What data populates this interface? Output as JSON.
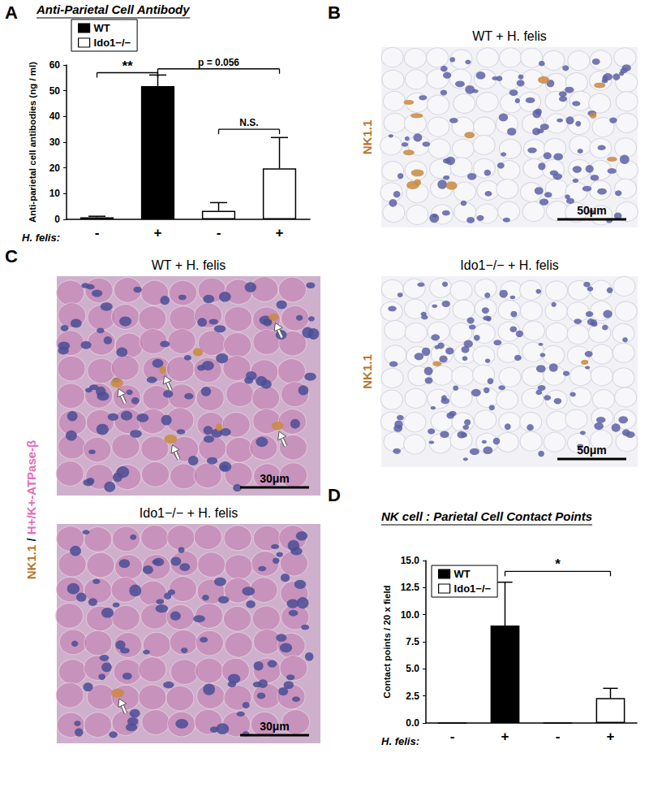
{
  "chart_data": [
    {
      "type": "bar",
      "panel": "A",
      "title": "Anti-Parietal Cell Antibody",
      "ylabel": "Anti-parietal cell antibodies (ng / ml)",
      "xlabel": "H. felis:",
      "categories": [
        "-",
        "+",
        "-",
        "+"
      ],
      "ylim": [
        0,
        60
      ],
      "yticks": [
        0,
        10,
        20,
        30,
        40,
        50,
        60
      ],
      "grid": false,
      "legend": "top-left",
      "series": [
        {
          "name": "WT",
          "color": "#000000",
          "values": [
            0.8,
            51.8,
            null,
            null
          ],
          "errors": [
            0.4,
            4.3,
            null,
            null
          ]
        },
        {
          "name": "Ido1−/−",
          "color": "#ffffff",
          "values": [
            null,
            null,
            3.3,
            19.8
          ],
          "errors": [
            null,
            null,
            3.2,
            12.0
          ]
        }
      ],
      "annotations": [
        {
          "text": "**",
          "between": [
            0,
            1
          ],
          "y": 57
        },
        {
          "text": "p = 0.056",
          "between": [
            1,
            3
          ],
          "y": 58.5
        },
        {
          "text": "N.S.",
          "between": [
            2,
            3
          ],
          "y": 35
        }
      ]
    },
    {
      "type": "bar",
      "panel": "D",
      "title": "NK cell : Parietal Cell Contact Points",
      "ylabel": "Contact points / 20 x field",
      "xlabel": "H. felis:",
      "categories": [
        "-",
        "+",
        "-",
        "+"
      ],
      "ylim": [
        0,
        15
      ],
      "yticks": [
        {
          "value": 0,
          "label": "0.0"
        },
        2.5,
        {
          "value": 5,
          "label": "5.0"
        },
        7.5,
        {
          "value": 10,
          "label": "10.0"
        },
        12.5,
        {
          "value": 15,
          "label": "15.0"
        }
      ],
      "grid": false,
      "legend": "top-left",
      "series": [
        {
          "name": "WT",
          "color": "#000000",
          "values": [
            0,
            9.0,
            null,
            null
          ],
          "errors": [
            null,
            4.0,
            null,
            null
          ]
        },
        {
          "name": "Ido1−/−",
          "color": "#ffffff",
          "values": [
            null,
            null,
            0,
            2.3
          ],
          "errors": [
            null,
            null,
            null,
            0.9
          ]
        }
      ],
      "annotations": [
        {
          "text": "*",
          "between": [
            1,
            3
          ],
          "y": 14
        }
      ]
    }
  ],
  "images": [
    {
      "panel": "B",
      "label": [
        {
          "text": "NK1.1",
          "color": "#b5762c"
        }
      ],
      "items": [
        {
          "title": "WT + H. felis",
          "scale_bar": "50μm",
          "arrows": 0
        },
        {
          "title": "Ido1−/− + H. felis",
          "scale_bar": "50μm",
          "arrows": 0
        }
      ]
    },
    {
      "panel": "C",
      "label": [
        {
          "text": "NK1.1",
          "color": "#b5762c"
        },
        {
          "text": "/",
          "color": "#222222"
        },
        {
          "text": "H+/K+-ATPase-β",
          "color": "#e36db5"
        }
      ],
      "items": [
        {
          "title": "WT + H. felis",
          "scale_bar": "30μm",
          "arrows": 5
        },
        {
          "title": "Ido1−/− + H. felis",
          "scale_bar": "30μm",
          "arrows": 1
        }
      ]
    }
  ]
}
